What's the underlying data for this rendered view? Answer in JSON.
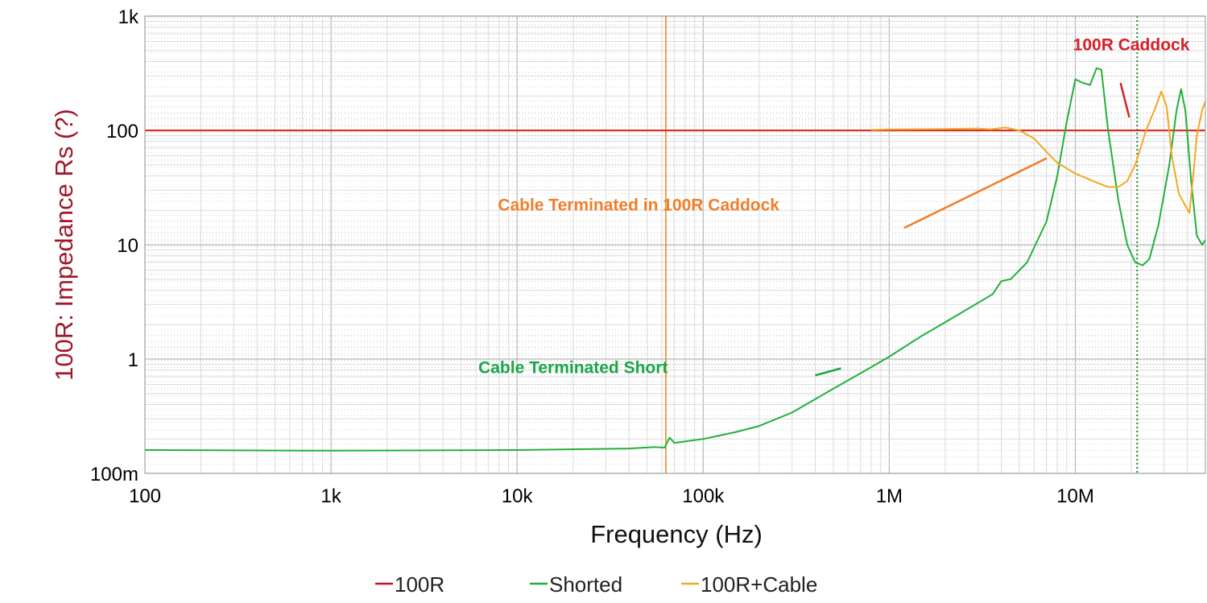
{
  "colors": {
    "r100": "#c8102e",
    "shorted": "#22b03a",
    "cable": "#f5a623",
    "cursor": "#f08a1c",
    "marker": "#1a8a2a",
    "ylabel": "#a0182a",
    "grid_major": "#b8b8b8",
    "grid_minor": "#dcdcdc"
  },
  "chart_data": {
    "type": "line",
    "scale": {
      "x": "log",
      "y": "log"
    },
    "xlim": [
      100,
      50000000
    ],
    "ylim": [
      0.1,
      1000
    ],
    "xlabel": "Frequency (Hz)",
    "ylabel": "100R: Impedance Rs (?)",
    "x_ticks": [
      {
        "value": 100,
        "label": "100"
      },
      {
        "value": 1000,
        "label": "1k"
      },
      {
        "value": 10000,
        "label": "10k"
      },
      {
        "value": 100000,
        "label": "100k"
      },
      {
        "value": 1000000,
        "label": "1M"
      },
      {
        "value": 10000000,
        "label": "10M"
      }
    ],
    "y_ticks": [
      {
        "value": 0.1,
        "label": "100m"
      },
      {
        "value": 1,
        "label": "1"
      },
      {
        "value": 10,
        "label": "10"
      },
      {
        "value": 100,
        "label": "100"
      },
      {
        "value": 1000,
        "label": "1k"
      }
    ],
    "grid": true,
    "legend_position": "bottom",
    "series": [
      {
        "name": "100R",
        "color": "#c8102e",
        "points": [
          [
            100,
            100
          ],
          [
            50000000,
            100
          ]
        ]
      },
      {
        "name": "Shorted",
        "color": "#22b03a",
        "points": [
          [
            100,
            0.16
          ],
          [
            1000,
            0.158
          ],
          [
            10000,
            0.16
          ],
          [
            40000,
            0.165
          ],
          [
            55000,
            0.17
          ],
          [
            62000,
            0.168
          ],
          [
            66000,
            0.205
          ],
          [
            70000,
            0.185
          ],
          [
            100000,
            0.2
          ],
          [
            150000,
            0.23
          ],
          [
            200000,
            0.26
          ],
          [
            300000,
            0.34
          ],
          [
            500000,
            0.55
          ],
          [
            700000,
            0.75
          ],
          [
            1000000,
            1.05
          ],
          [
            1500000,
            1.6
          ],
          [
            2000000,
            2.1
          ],
          [
            3000000,
            3.1
          ],
          [
            3600000,
            3.7
          ],
          [
            4000000,
            4.8
          ],
          [
            4500000,
            5.0
          ],
          [
            5500000,
            7.0
          ],
          [
            7000000,
            16
          ],
          [
            8000000,
            40
          ],
          [
            9000000,
            120
          ],
          [
            10000000,
            280
          ],
          [
            11000000,
            260
          ],
          [
            12000000,
            250
          ],
          [
            13000000,
            350
          ],
          [
            13800000,
            340
          ],
          [
            15000000,
            100
          ],
          [
            17000000,
            25
          ],
          [
            19000000,
            10
          ],
          [
            21000000,
            7
          ],
          [
            23000000,
            6.6
          ],
          [
            25000000,
            7.5
          ],
          [
            28000000,
            15
          ],
          [
            32000000,
            50
          ],
          [
            35000000,
            150
          ],
          [
            37000000,
            230
          ],
          [
            39000000,
            150
          ],
          [
            42000000,
            35
          ],
          [
            45000000,
            12
          ],
          [
            48000000,
            10
          ],
          [
            50000000,
            11
          ]
        ]
      },
      {
        "name": "100R+Cable",
        "color": "#f5a623",
        "points": [
          [
            800000,
            101
          ],
          [
            1000000,
            102
          ],
          [
            2000000,
            103
          ],
          [
            3000000,
            104
          ],
          [
            3500000,
            102
          ],
          [
            4200000,
            106
          ],
          [
            5000000,
            100
          ],
          [
            6000000,
            85
          ],
          [
            7000000,
            65
          ],
          [
            8000000,
            52
          ],
          [
            10000000,
            42
          ],
          [
            13000000,
            35
          ],
          [
            15000000,
            32
          ],
          [
            17000000,
            32
          ],
          [
            19000000,
            36
          ],
          [
            21000000,
            50
          ],
          [
            24000000,
            100
          ],
          [
            27000000,
            160
          ],
          [
            29000000,
            220
          ],
          [
            31000000,
            160
          ],
          [
            33000000,
            60
          ],
          [
            36000000,
            28
          ],
          [
            39000000,
            22
          ],
          [
            41000000,
            19
          ],
          [
            43000000,
            40
          ],
          [
            45000000,
            90
          ],
          [
            48000000,
            150
          ],
          [
            50000000,
            180
          ]
        ]
      }
    ],
    "cursors": [
      {
        "x": 63000,
        "color": "#f08a1c",
        "style": "solid"
      },
      {
        "x": 21500000,
        "color": "#1a8a2a",
        "style": "dotted"
      }
    ],
    "hline": {
      "y": 100,
      "color": "#f08a1c"
    },
    "annotations": [
      {
        "text": "100R Caddock",
        "color": "#d8202a",
        "label_at": [
          20000000,
          500
        ],
        "arrow_from": [
          17500000,
          260
        ],
        "arrow_to": [
          19500000,
          130
        ]
      },
      {
        "text": "Cable Terminated in 100R Caddock",
        "color": "#f07e2a",
        "label_at": [
          45000,
          20
        ],
        "arrow_from": [
          1200000,
          14
        ],
        "arrow_to": [
          7000000,
          57
        ]
      },
      {
        "text": "Cable Terminated Short",
        "color": "#1aa64a",
        "label_at": [
          20000,
          0.75
        ],
        "arrow_from": [
          400000,
          0.72
        ],
        "arrow_to": [
          550000,
          0.83
        ]
      }
    ]
  }
}
